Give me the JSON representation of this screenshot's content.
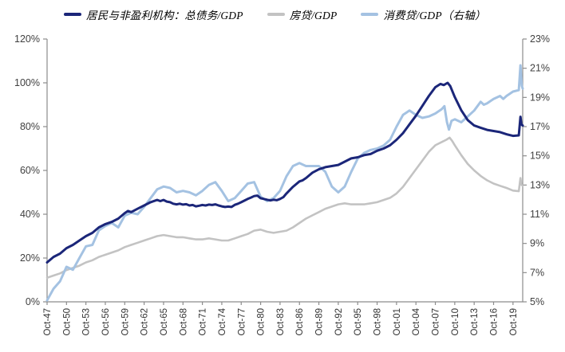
{
  "legend": [
    {
      "id": "total-debt",
      "label": "居民与非盈利机构：总债务/GDP",
      "color": "#1b2679"
    },
    {
      "id": "mortgage",
      "label": "房贷/GDP",
      "color": "#c3c3c3"
    },
    {
      "id": "consumer-credit",
      "label": "消费贷/GDP（右轴）",
      "color": "#a4c2e2"
    }
  ],
  "chart_data": {
    "type": "line",
    "title": "",
    "xlabel": "",
    "ylabel_left": "",
    "ylabel_right": "",
    "grid": false,
    "legend_position": "top",
    "axis_color": "#8c8c8c",
    "left_axis": {
      "min": 0,
      "max": 120,
      "step": 20,
      "labels": [
        "0%",
        "20%",
        "40%",
        "60%",
        "80%",
        "100%",
        "120%"
      ]
    },
    "right_axis": {
      "min": 5,
      "max": 23,
      "step": 2,
      "labels": [
        "5%",
        "7%",
        "9%",
        "11%",
        "13%",
        "15%",
        "17%",
        "19%",
        "21%",
        "23%"
      ]
    },
    "x_ticks": [
      "Oct-47",
      "Oct-50",
      "Oct-53",
      "Oct-56",
      "Oct-59",
      "Oct-62",
      "Oct-65",
      "Oct-68",
      "Oct-71",
      "Oct-74",
      "Oct-77",
      "Oct-80",
      "Oct-83",
      "Oct-86",
      "Oct-89",
      "Oct-92",
      "Oct-95",
      "Oct-98",
      "Oct-01",
      "Oct-04",
      "Oct-07",
      "Oct-10",
      "Oct-13",
      "Oct-16",
      "Oct-19"
    ],
    "x_tick_start_year": 1947,
    "x_tick_step_years": 3,
    "x_domain": [
      1947,
      2020.5
    ],
    "series": [
      {
        "id": "mortgage",
        "name": "房贷/GDP",
        "axis": "left",
        "color": "#c3c3c3",
        "width": 2.6,
        "points": [
          [
            1947,
            11
          ],
          [
            1948,
            12
          ],
          [
            1949,
            13
          ],
          [
            1950,
            14.5
          ],
          [
            1951,
            15.5
          ],
          [
            1952,
            16.5
          ],
          [
            1953,
            18
          ],
          [
            1954,
            19
          ],
          [
            1955,
            20.5
          ],
          [
            1956,
            21.5
          ],
          [
            1957,
            22.5
          ],
          [
            1958,
            23.5
          ],
          [
            1959,
            25
          ],
          [
            1960,
            26
          ],
          [
            1961,
            27
          ],
          [
            1962,
            28
          ],
          [
            1963,
            29
          ],
          [
            1964,
            30
          ],
          [
            1965,
            30.5
          ],
          [
            1966,
            30
          ],
          [
            1967,
            29.5
          ],
          [
            1968,
            29.5
          ],
          [
            1969,
            29
          ],
          [
            1970,
            28.5
          ],
          [
            1971,
            28.5
          ],
          [
            1972,
            29
          ],
          [
            1973,
            28.5
          ],
          [
            1974,
            28
          ],
          [
            1975,
            28
          ],
          [
            1976,
            29
          ],
          [
            1977,
            30
          ],
          [
            1978,
            31
          ],
          [
            1979,
            32.5
          ],
          [
            1980,
            33
          ],
          [
            1981,
            32
          ],
          [
            1982,
            31.5
          ],
          [
            1983,
            32
          ],
          [
            1984,
            32.5
          ],
          [
            1985,
            34
          ],
          [
            1986,
            36
          ],
          [
            1987,
            38
          ],
          [
            1988,
            39.5
          ],
          [
            1989,
            41
          ],
          [
            1990,
            42.5
          ],
          [
            1991,
            43.5
          ],
          [
            1992,
            44.5
          ],
          [
            1993,
            45
          ],
          [
            1994,
            44.5
          ],
          [
            1995,
            44.5
          ],
          [
            1996,
            44.5
          ],
          [
            1997,
            45
          ],
          [
            1998,
            45.5
          ],
          [
            1999,
            46.5
          ],
          [
            2000,
            47.5
          ],
          [
            2001,
            49.5
          ],
          [
            2002,
            52.5
          ],
          [
            2003,
            56.5
          ],
          [
            2004,
            60.5
          ],
          [
            2005,
            64.5
          ],
          [
            2006,
            68.5
          ],
          [
            2007,
            71.5
          ],
          [
            2008,
            73
          ],
          [
            2008.7,
            74
          ],
          [
            2009.2,
            75
          ],
          [
            2009.6,
            73.5
          ],
          [
            2010,
            71.5
          ],
          [
            2011,
            67
          ],
          [
            2012,
            63
          ],
          [
            2013,
            60
          ],
          [
            2014,
            57.5
          ],
          [
            2015,
            55.5
          ],
          [
            2016,
            54
          ],
          [
            2017,
            53
          ],
          [
            2018,
            52
          ],
          [
            2019,
            50.8
          ],
          [
            2019.9,
            50.5
          ],
          [
            2020.15,
            56.5
          ],
          [
            2020.3,
            53.5
          ],
          [
            2020.5,
            53
          ]
        ]
      },
      {
        "id": "consumer-credit",
        "name": "消费贷/GDP（右轴）",
        "axis": "right",
        "color": "#a4c2e2",
        "width": 3,
        "points": [
          [
            1947,
            5.1
          ],
          [
            1948,
            5.9
          ],
          [
            1949,
            6.4
          ],
          [
            1950,
            7.4
          ],
          [
            1951,
            7.2
          ],
          [
            1952,
            8.0
          ],
          [
            1953,
            8.8
          ],
          [
            1954,
            8.9
          ],
          [
            1955,
            9.9
          ],
          [
            1956,
            10.2
          ],
          [
            1957,
            10.4
          ],
          [
            1958,
            10.1
          ],
          [
            1959,
            10.9
          ],
          [
            1960,
            11.1
          ],
          [
            1961,
            11.0
          ],
          [
            1962,
            11.5
          ],
          [
            1963,
            12.1
          ],
          [
            1964,
            12.7
          ],
          [
            1965,
            12.9
          ],
          [
            1966,
            12.8
          ],
          [
            1967,
            12.5
          ],
          [
            1968,
            12.6
          ],
          [
            1969,
            12.5
          ],
          [
            1970,
            12.3
          ],
          [
            1971,
            12.6
          ],
          [
            1972,
            13.0
          ],
          [
            1973,
            13.2
          ],
          [
            1974,
            12.6
          ],
          [
            1975,
            11.9
          ],
          [
            1976,
            12.1
          ],
          [
            1977,
            12.6
          ],
          [
            1978,
            13.1
          ],
          [
            1979,
            13.2
          ],
          [
            1980,
            12.2
          ],
          [
            1981,
            11.9
          ],
          [
            1982,
            12.1
          ],
          [
            1983,
            12.6
          ],
          [
            1984,
            13.6
          ],
          [
            1985,
            14.3
          ],
          [
            1986,
            14.5
          ],
          [
            1987,
            14.3
          ],
          [
            1988,
            14.3
          ],
          [
            1989,
            14.3
          ],
          [
            1990,
            13.9
          ],
          [
            1991,
            12.9
          ],
          [
            1992,
            12.5
          ],
          [
            1993,
            12.9
          ],
          [
            1994,
            13.9
          ],
          [
            1995,
            14.8
          ],
          [
            1996,
            15.2
          ],
          [
            1997,
            15.4
          ],
          [
            1998,
            15.5
          ],
          [
            1999,
            15.7
          ],
          [
            2000,
            16.1
          ],
          [
            2001,
            17.0
          ],
          [
            2002,
            17.8
          ],
          [
            2003,
            18.1
          ],
          [
            2004,
            17.8
          ],
          [
            2005,
            17.6
          ],
          [
            2006,
            17.7
          ],
          [
            2007,
            17.9
          ],
          [
            2008,
            18.2
          ],
          [
            2008.4,
            18.4
          ],
          [
            2008.8,
            17.3
          ],
          [
            2009.1,
            16.8
          ],
          [
            2009.5,
            17.4
          ],
          [
            2010,
            17.5
          ],
          [
            2011,
            17.3
          ],
          [
            2012,
            17.7
          ],
          [
            2013,
            18.1
          ],
          [
            2014,
            18.7
          ],
          [
            2014.5,
            18.5
          ],
          [
            2015,
            18.6
          ],
          [
            2016,
            18.9
          ],
          [
            2017,
            19.1
          ],
          [
            2017.5,
            18.9
          ],
          [
            2018,
            19.1
          ],
          [
            2019,
            19.4
          ],
          [
            2019.9,
            19.5
          ],
          [
            2020.15,
            21.2
          ],
          [
            2020.35,
            19.8
          ],
          [
            2020.5,
            19.6
          ]
        ]
      },
      {
        "id": "total-debt",
        "name": "居民与非盈利机构：总债务/GDP",
        "axis": "left",
        "color": "#1b2679",
        "width": 3,
        "points": [
          [
            1947,
            18
          ],
          [
            1948,
            20.5
          ],
          [
            1949,
            22
          ],
          [
            1950,
            24.5
          ],
          [
            1951,
            26
          ],
          [
            1952,
            28
          ],
          [
            1953,
            30
          ],
          [
            1954,
            31.5
          ],
          [
            1955,
            34
          ],
          [
            1956,
            35.5
          ],
          [
            1957,
            36.5
          ],
          [
            1958,
            38
          ],
          [
            1959,
            40.5
          ],
          [
            1959.5,
            41.5
          ],
          [
            1960,
            41
          ],
          [
            1961,
            42.5
          ],
          [
            1962,
            44
          ],
          [
            1963,
            45.5
          ],
          [
            1964,
            46.5
          ],
          [
            1964.5,
            46
          ],
          [
            1965,
            46.5
          ],
          [
            1965.5,
            45.8
          ],
          [
            1966,
            45.5
          ],
          [
            1966.5,
            44.8
          ],
          [
            1967,
            44.5
          ],
          [
            1967.5,
            44.8
          ],
          [
            1968,
            44.4
          ],
          [
            1968.5,
            44.6
          ],
          [
            1969,
            44
          ],
          [
            1969.5,
            44.2
          ],
          [
            1970,
            43.6
          ],
          [
            1970.5,
            43.9
          ],
          [
            1971,
            44.2
          ],
          [
            1971.5,
            44
          ],
          [
            1972,
            44.4
          ],
          [
            1972.5,
            44.2
          ],
          [
            1973,
            44.5
          ],
          [
            1973.5,
            44
          ],
          [
            1974,
            43.6
          ],
          [
            1974.5,
            43.3
          ],
          [
            1975,
            43.5
          ],
          [
            1975.5,
            43.3
          ],
          [
            1976,
            44.3
          ],
          [
            1976.5,
            44.8
          ],
          [
            1977,
            45.5
          ],
          [
            1977.5,
            46.2
          ],
          [
            1978,
            47
          ],
          [
            1978.5,
            47.6
          ],
          [
            1979,
            48.3
          ],
          [
            1979.5,
            48.5
          ],
          [
            1980,
            47.3
          ],
          [
            1980.5,
            47
          ],
          [
            1981,
            46.6
          ],
          [
            1981.5,
            46.3
          ],
          [
            1982,
            46.6
          ],
          [
            1982.5,
            46.4
          ],
          [
            1983,
            47
          ],
          [
            1983.5,
            47.8
          ],
          [
            1984,
            49.5
          ],
          [
            1985,
            52.5
          ],
          [
            1986,
            55
          ],
          [
            1986.5,
            55.5
          ],
          [
            1987,
            56.5
          ],
          [
            1988,
            59
          ],
          [
            1989,
            60.5
          ],
          [
            1990,
            61.5
          ],
          [
            1991,
            62
          ],
          [
            1992,
            62.5
          ],
          [
            1993,
            64
          ],
          [
            1994,
            65.5
          ],
          [
            1995,
            66
          ],
          [
            1996,
            67
          ],
          [
            1997,
            67.5
          ],
          [
            1998,
            69
          ],
          [
            1999,
            70
          ],
          [
            2000,
            71.5
          ],
          [
            2001,
            74
          ],
          [
            2002,
            77
          ],
          [
            2003,
            81
          ],
          [
            2004,
            85
          ],
          [
            2005,
            89.5
          ],
          [
            2006,
            94
          ],
          [
            2007,
            98
          ],
          [
            2007.8,
            99.5
          ],
          [
            2008.3,
            99
          ],
          [
            2008.9,
            100
          ],
          [
            2009.3,
            98.5
          ],
          [
            2010,
            93.5
          ],
          [
            2011,
            87.5
          ],
          [
            2012,
            83
          ],
          [
            2013,
            80.5
          ],
          [
            2014,
            79.5
          ],
          [
            2015,
            78.5
          ],
          [
            2016,
            78
          ],
          [
            2017,
            77.5
          ],
          [
            2018,
            76.5
          ],
          [
            2019,
            75.8
          ],
          [
            2019.9,
            76
          ],
          [
            2020.15,
            84.5
          ],
          [
            2020.3,
            81
          ],
          [
            2020.5,
            80.5
          ]
        ]
      }
    ]
  }
}
